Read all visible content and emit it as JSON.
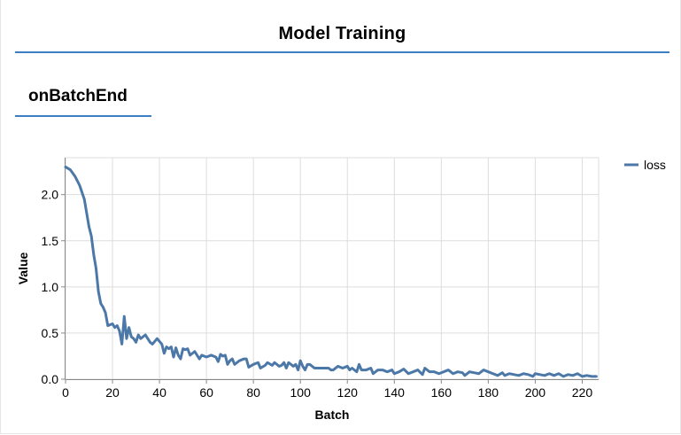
{
  "header": {
    "title": "Model Training"
  },
  "tab": {
    "label": "onBatchEnd"
  },
  "chart_data": {
    "type": "line",
    "xlabel": "Batch",
    "ylabel": "Value",
    "xlim": [
      0,
      220
    ],
    "ylim": [
      0,
      2.3
    ],
    "xticks": [
      0,
      20,
      40,
      60,
      80,
      100,
      120,
      140,
      160,
      180,
      200,
      220
    ],
    "yticks": [
      0.0,
      0.5,
      1.0,
      1.5,
      2.0
    ],
    "ytick_labels": [
      "0.0",
      "0.5",
      "1.0",
      "1.5",
      "2.0"
    ],
    "grid": true,
    "legend": "top-right",
    "series": [
      {
        "name": "loss",
        "color": "#4c78a8",
        "points": [
          [
            0,
            2.3
          ],
          [
            2,
            2.27
          ],
          [
            4,
            2.2
          ],
          [
            6,
            2.1
          ],
          [
            8,
            1.95
          ],
          [
            10,
            1.65
          ],
          [
            11,
            1.55
          ],
          [
            12,
            1.35
          ],
          [
            13,
            1.2
          ],
          [
            14,
            0.95
          ],
          [
            15,
            0.82
          ],
          [
            16,
            0.78
          ],
          [
            17,
            0.72
          ],
          [
            18,
            0.58
          ],
          [
            20,
            0.6
          ],
          [
            21,
            0.56
          ],
          [
            22,
            0.58
          ],
          [
            23,
            0.52
          ],
          [
            24,
            0.38
          ],
          [
            25,
            0.68
          ],
          [
            26,
            0.44
          ],
          [
            27,
            0.56
          ],
          [
            28,
            0.46
          ],
          [
            29,
            0.44
          ],
          [
            30,
            0.4
          ],
          [
            31,
            0.48
          ],
          [
            32,
            0.44
          ],
          [
            34,
            0.48
          ],
          [
            36,
            0.4
          ],
          [
            37,
            0.38
          ],
          [
            39,
            0.44
          ],
          [
            41,
            0.38
          ],
          [
            42,
            0.28
          ],
          [
            43,
            0.35
          ],
          [
            44,
            0.33
          ],
          [
            45,
            0.35
          ],
          [
            46,
            0.24
          ],
          [
            47,
            0.34
          ],
          [
            48,
            0.26
          ],
          [
            49,
            0.22
          ],
          [
            50,
            0.33
          ],
          [
            51,
            0.32
          ],
          [
            52,
            0.33
          ],
          [
            53,
            0.26
          ],
          [
            55,
            0.3
          ],
          [
            56,
            0.26
          ],
          [
            57,
            0.22
          ],
          [
            58,
            0.26
          ],
          [
            60,
            0.24
          ],
          [
            62,
            0.26
          ],
          [
            64,
            0.24
          ],
          [
            65,
            0.19
          ],
          [
            66,
            0.27
          ],
          [
            67,
            0.25
          ],
          [
            68,
            0.26
          ],
          [
            69,
            0.16
          ],
          [
            70,
            0.2
          ],
          [
            71,
            0.22
          ],
          [
            72,
            0.16
          ],
          [
            73,
            0.18
          ],
          [
            74,
            0.2
          ],
          [
            76,
            0.22
          ],
          [
            77,
            0.22
          ],
          [
            78,
            0.13
          ],
          [
            80,
            0.16
          ],
          [
            82,
            0.18
          ],
          [
            83,
            0.12
          ],
          [
            85,
            0.15
          ],
          [
            86,
            0.18
          ],
          [
            88,
            0.15
          ],
          [
            89,
            0.18
          ],
          [
            91,
            0.14
          ],
          [
            92,
            0.15
          ],
          [
            93,
            0.18
          ],
          [
            94,
            0.12
          ],
          [
            95,
            0.18
          ],
          [
            97,
            0.14
          ],
          [
            98,
            0.16
          ],
          [
            99,
            0.1
          ],
          [
            100,
            0.2
          ],
          [
            101,
            0.14
          ],
          [
            102,
            0.1
          ],
          [
            103,
            0.16
          ],
          [
            104,
            0.16
          ],
          [
            106,
            0.12
          ],
          [
            108,
            0.12
          ],
          [
            110,
            0.12
          ],
          [
            112,
            0.12
          ],
          [
            113,
            0.1
          ],
          [
            114,
            0.1
          ],
          [
            116,
            0.14
          ],
          [
            118,
            0.12
          ],
          [
            120,
            0.14
          ],
          [
            121,
            0.1
          ],
          [
            122,
            0.12
          ],
          [
            124,
            0.08
          ],
          [
            125,
            0.16
          ],
          [
            126,
            0.1
          ],
          [
            128,
            0.1
          ],
          [
            130,
            0.12
          ],
          [
            131,
            0.06
          ],
          [
            133,
            0.1
          ],
          [
            135,
            0.1
          ],
          [
            137,
            0.08
          ],
          [
            139,
            0.1
          ],
          [
            140,
            0.06
          ],
          [
            142,
            0.08
          ],
          [
            144,
            0.11
          ],
          [
            146,
            0.06
          ],
          [
            148,
            0.08
          ],
          [
            150,
            0.1
          ],
          [
            152,
            0.05
          ],
          [
            153,
            0.12
          ],
          [
            155,
            0.08
          ],
          [
            157,
            0.08
          ],
          [
            159,
            0.06
          ],
          [
            161,
            0.08
          ],
          [
            163,
            0.1
          ],
          [
            165,
            0.06
          ],
          [
            167,
            0.08
          ],
          [
            169,
            0.07
          ],
          [
            170,
            0.04
          ],
          [
            172,
            0.08
          ],
          [
            174,
            0.07
          ],
          [
            176,
            0.06
          ],
          [
            178,
            0.1
          ],
          [
            180,
            0.08
          ],
          [
            182,
            0.06
          ],
          [
            184,
            0.04
          ],
          [
            186,
            0.07
          ],
          [
            187,
            0.04
          ],
          [
            189,
            0.06
          ],
          [
            191,
            0.05
          ],
          [
            193,
            0.04
          ],
          [
            195,
            0.06
          ],
          [
            197,
            0.05
          ],
          [
            199,
            0.03
          ],
          [
            200,
            0.06
          ],
          [
            202,
            0.05
          ],
          [
            204,
            0.04
          ],
          [
            206,
            0.06
          ],
          [
            208,
            0.04
          ],
          [
            210,
            0.06
          ],
          [
            212,
            0.03
          ],
          [
            214,
            0.05
          ],
          [
            216,
            0.04
          ],
          [
            218,
            0.06
          ],
          [
            220,
            0.03
          ],
          [
            222,
            0.04
          ],
          [
            224,
            0.03
          ],
          [
            226,
            0.03
          ]
        ]
      }
    ]
  }
}
